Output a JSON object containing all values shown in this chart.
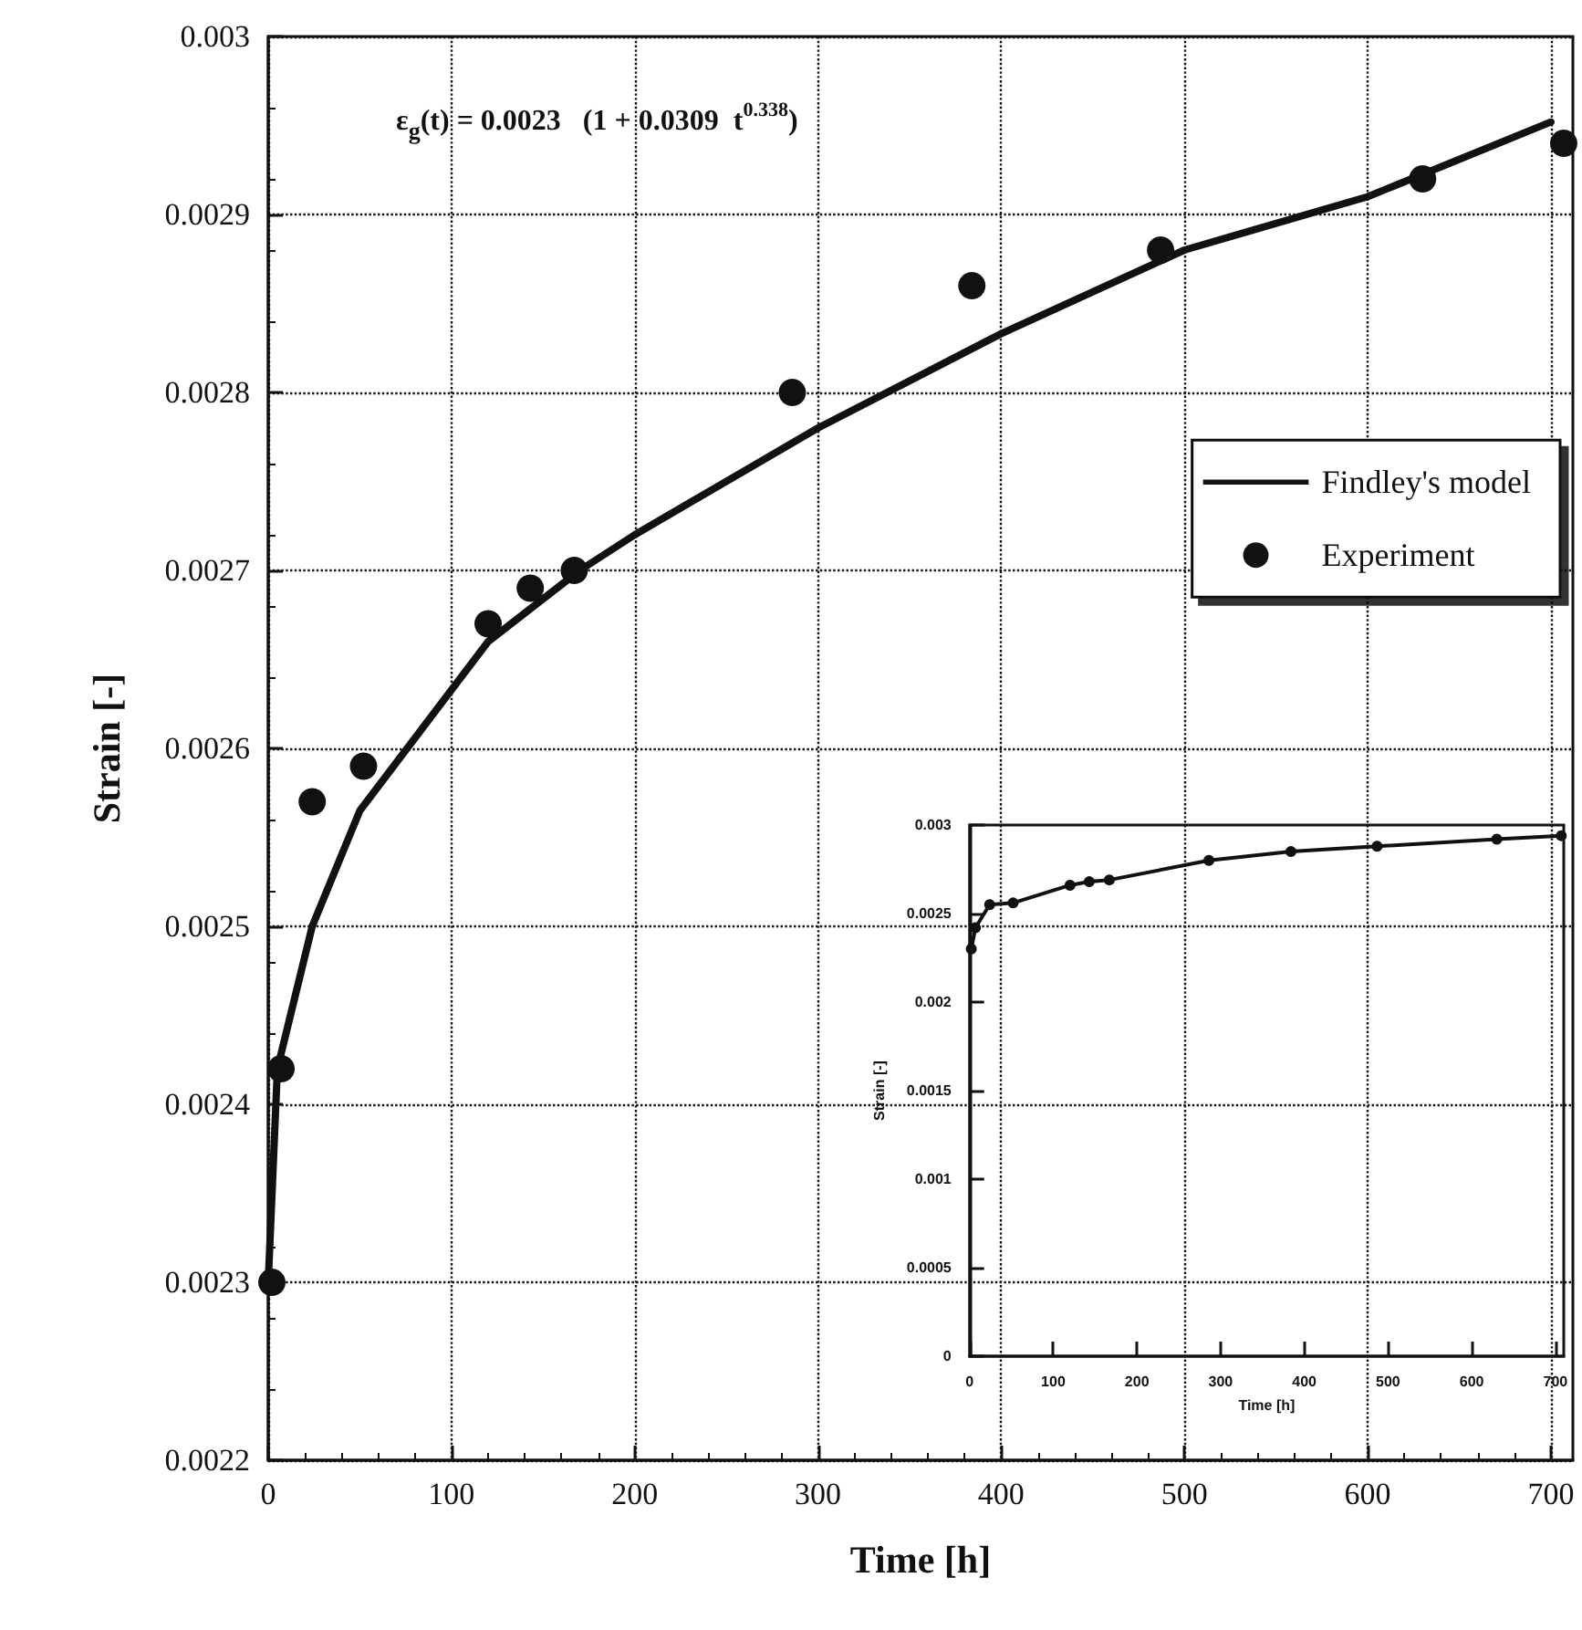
{
  "chart_data": [
    {
      "type": "line",
      "xlabel": "Time [h]",
      "ylabel": "Strain [-]",
      "annotations": [
        "ε$_{g}$(t) = 0.0023   (1 + 0.0309  t$^{0.338}$)"
      ],
      "xlim": [
        0,
        712
      ],
      "ylim": [
        0.0022,
        0.003
      ],
      "xticks": [
        0,
        100,
        200,
        300,
        400,
        500,
        600,
        700
      ],
      "yticks": [
        0.0022,
        0.0023,
        0.0024,
        0.0025,
        0.0026,
        0.0027,
        0.0028,
        0.0029,
        0.003
      ],
      "grid": true,
      "legend": "right",
      "series": [
        {
          "name": "Findley's model",
          "color": "#111111",
          "marker": "none",
          "line_style": "solid",
          "x": [
            0,
            5,
            24,
            50,
            120,
            170,
            200,
            300,
            400,
            500,
            600,
            700
          ],
          "values": [
            0.0023,
            0.00242,
            0.0025,
            0.002565,
            0.00266,
            0.0027,
            0.00272,
            0.00278,
            0.002833,
            0.00288,
            0.00291,
            0.002952
          ]
        },
        {
          "name": "Experiment",
          "type": "scatter",
          "color": "#111111",
          "marker": "circle",
          "x": [
            2,
            7,
            24,
            52,
            120,
            143,
            167,
            286,
            384,
            487,
            630,
            707
          ],
          "values": [
            0.0023,
            0.00242,
            0.00257,
            0.00259,
            0.00267,
            0.00269,
            0.0027,
            0.0028,
            0.00286,
            0.00288,
            0.00292,
            0.00294
          ]
        }
      ]
    },
    {
      "type": "line",
      "xlabel": "Time [h]",
      "ylabel": "Strain [-]",
      "xlim": [
        0,
        710
      ],
      "ylim": [
        0,
        0.003
      ],
      "xticks": [
        0,
        100,
        200,
        300,
        400,
        500,
        600,
        700
      ],
      "yticks": [
        0,
        0.0005,
        0.001,
        0.0015,
        0.002,
        0.0025,
        0.003
      ],
      "grid": false,
      "legend": false,
      "marker": "circle",
      "line_style": "solid",
      "series": [
        {
          "color": "#111111",
          "x": [
            2,
            7,
            24,
            52,
            120,
            143,
            167,
            286,
            384,
            487,
            630,
            707
          ],
          "values": [
            0.0023,
            0.00242,
            0.00255,
            0.00256,
            0.00266,
            0.00268,
            0.00269,
            0.0028,
            0.00285,
            0.00288,
            0.00292,
            0.00294
          ]
        }
      ]
    }
  ]
}
